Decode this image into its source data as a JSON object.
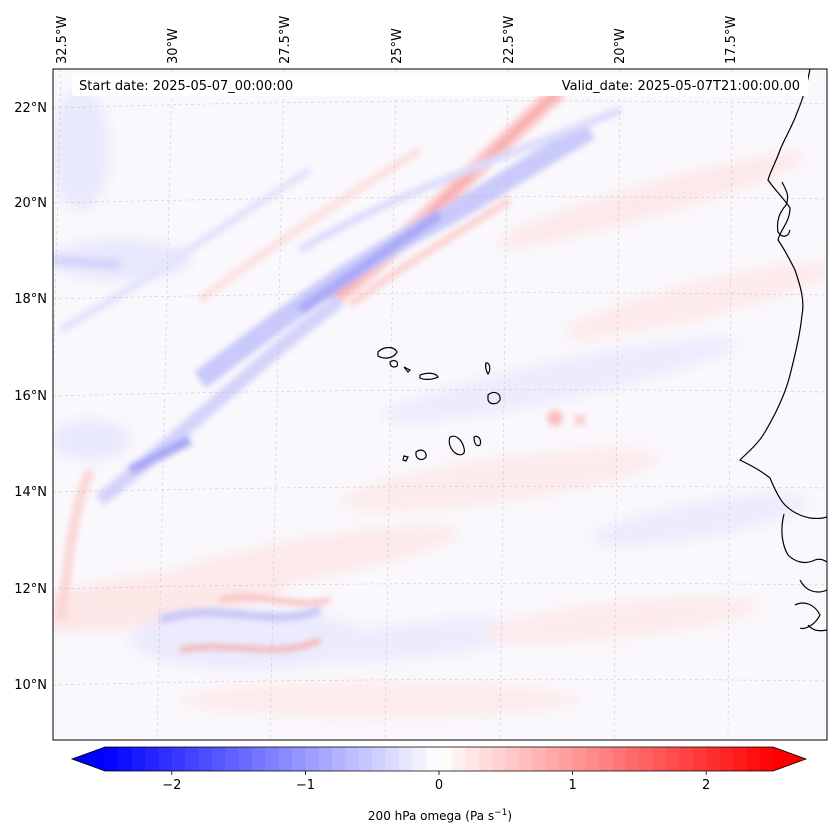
{
  "map": {
    "start_date": "Start date: 2025-05-07_00:00:00",
    "valid_date": "Valid_date: 2025-05-07T21:00:00.00",
    "lon_labels": [
      "32.5°W",
      "30°W",
      "27.5°W",
      "25°W",
      "22.5°W",
      "20°W",
      "17.5°W"
    ],
    "lat_labels": [
      "22°N",
      "20°N",
      "18°N",
      "16°N",
      "14°N",
      "12°N",
      "10°N"
    ],
    "gridlines": true
  },
  "colorbar": {
    "label_main": "200 hPa omega (Pa s",
    "label_exp": "−1",
    "label_tail": ")",
    "ticks": [
      "−2",
      "−1",
      "0",
      "1",
      "2"
    ],
    "tick_values": [
      -2,
      -1,
      0,
      1,
      2
    ],
    "vmin": -2.5,
    "vmax": 2.5,
    "extend": "both",
    "colormap": "bwr",
    "low_color": "#0000ff",
    "mid_color": "#ffffff",
    "high_color": "#ff0000"
  }
}
